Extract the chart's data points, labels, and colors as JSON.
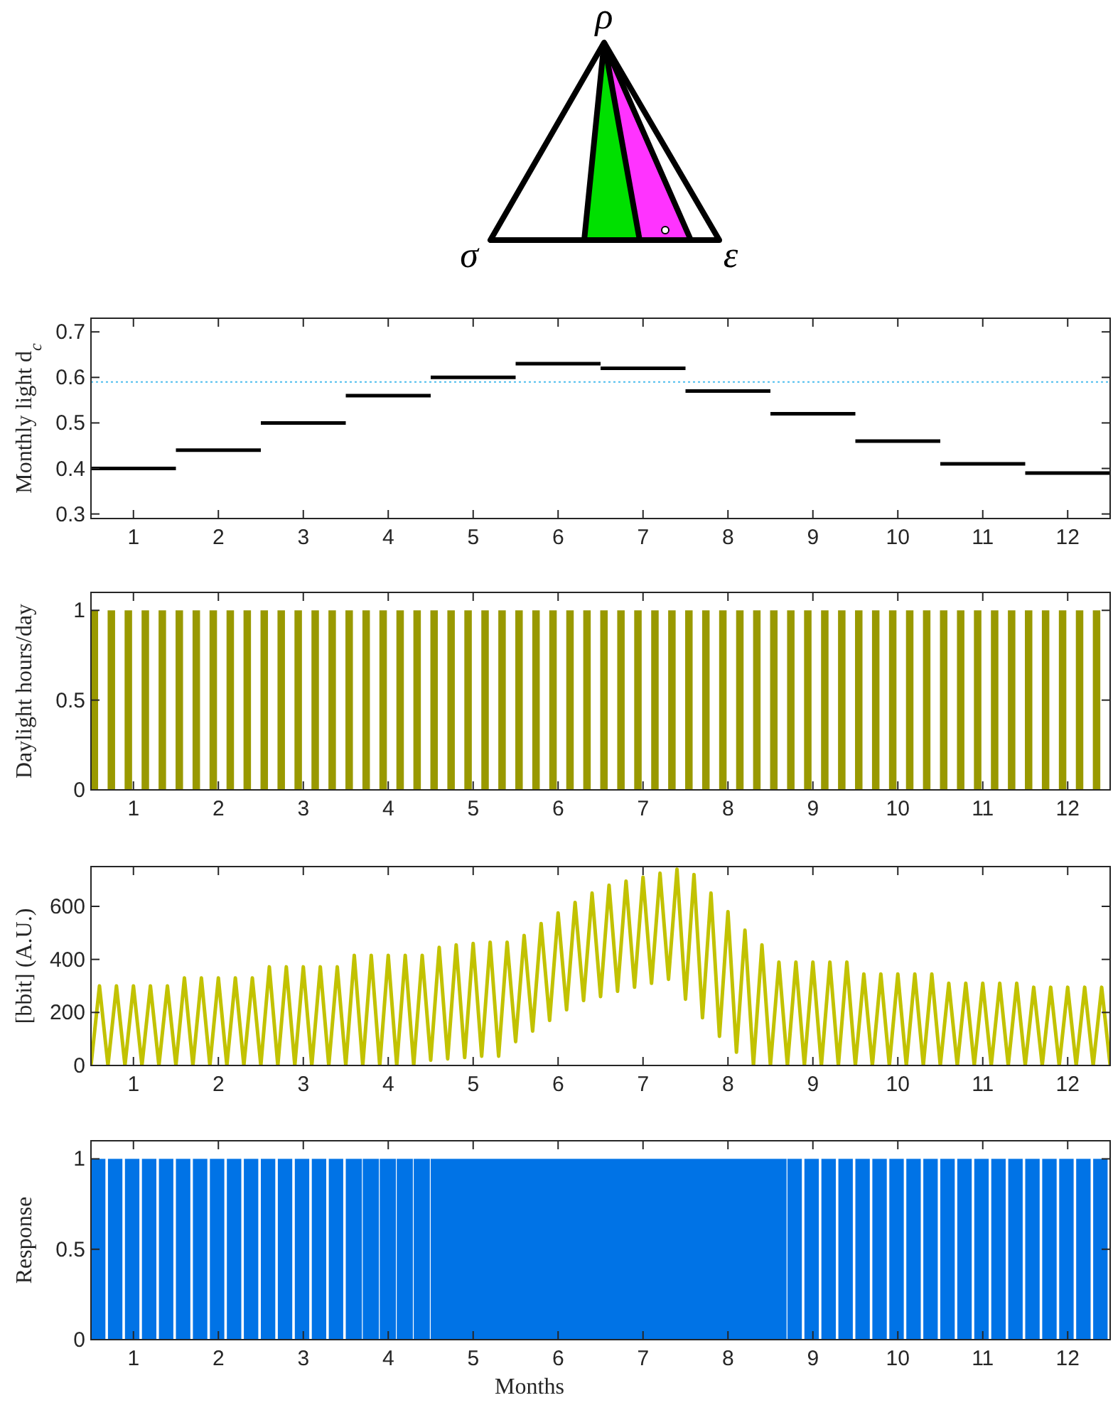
{
  "chart_data": [
    {
      "type": "other",
      "annotations": [
        "ρ",
        "σ",
        "ε"
      ]
    },
    {
      "type": "line",
      "ylabel": "Monthly light d$_{c}$",
      "series": [
        {
          "x": [
            0.5,
            1.5
          ],
          "values": [
            0.4,
            0.4
          ],
          "color": "#000000"
        },
        {
          "x": [
            1.5,
            2.5
          ],
          "values": [
            0.44,
            0.44
          ],
          "color": "#000000"
        },
        {
          "x": [
            2.5,
            3.5
          ],
          "values": [
            0.5,
            0.5
          ],
          "color": "#000000"
        },
        {
          "x": [
            3.5,
            4.5
          ],
          "values": [
            0.56,
            0.56
          ],
          "color": "#000000"
        },
        {
          "x": [
            4.5,
            5.5
          ],
          "values": [
            0.6,
            0.6
          ],
          "color": "#000000"
        },
        {
          "x": [
            5.5,
            6.5
          ],
          "values": [
            0.63,
            0.63
          ],
          "color": "#000000"
        },
        {
          "x": [
            6.5,
            7.5
          ],
          "values": [
            0.62,
            0.62
          ],
          "color": "#000000"
        },
        {
          "x": [
            7.5,
            8.5
          ],
          "values": [
            0.57,
            0.57
          ],
          "color": "#000000"
        },
        {
          "x": [
            8.5,
            9.5
          ],
          "values": [
            0.52,
            0.52
          ],
          "color": "#000000"
        },
        {
          "x": [
            9.5,
            10.5
          ],
          "values": [
            0.46,
            0.46
          ],
          "color": "#000000"
        },
        {
          "x": [
            10.5,
            11.5
          ],
          "values": [
            0.41,
            0.41
          ],
          "color": "#000000"
        },
        {
          "x": [
            11.5,
            12.5
          ],
          "values": [
            0.39,
            0.39
          ],
          "color": "#000000"
        }
      ],
      "xlim": [
        0.5,
        12.5
      ],
      "xticks": [
        1,
        2,
        3,
        4,
        5,
        6,
        7,
        8,
        9,
        10,
        11,
        12
      ],
      "ylim": [
        0.29,
        0.73
      ],
      "yticks": [
        0.3,
        0.4,
        0.5,
        0.6,
        0.7
      ],
      "ref_lines": [
        {
          "axis": "y",
          "value": 0.59,
          "color": "#4dbeee",
          "line_style": "dotted"
        }
      ],
      "grid": false
    },
    {
      "type": "bar",
      "ylabel": "Daylight hours/day",
      "x": [
        0.54,
        0.74,
        0.94,
        1.14,
        1.34,
        1.54,
        1.74,
        1.94,
        2.14,
        2.34,
        2.54,
        2.74,
        2.94,
        3.14,
        3.34,
        3.54,
        3.74,
        3.94,
        4.14,
        4.34,
        4.54,
        4.74,
        4.94,
        5.14,
        5.34,
        5.54,
        5.74,
        5.94,
        6.14,
        6.34,
        6.54,
        6.74,
        6.94,
        7.14,
        7.34,
        7.54,
        7.74,
        7.94,
        8.14,
        8.34,
        8.54,
        8.74,
        8.94,
        9.14,
        9.34,
        9.54,
        9.74,
        9.94,
        10.14,
        10.34,
        10.54,
        10.74,
        10.94,
        11.14,
        11.34,
        11.54,
        11.74,
        11.94,
        12.14,
        12.34
      ],
      "values": [
        1,
        1,
        1,
        1,
        1,
        1,
        1,
        1,
        1,
        1,
        1,
        1,
        1,
        1,
        1,
        1,
        1,
        1,
        1,
        1,
        1,
        1,
        1,
        1,
        1,
        1,
        1,
        1,
        1,
        1,
        1,
        1,
        1,
        1,
        1,
        1,
        1,
        1,
        1,
        1,
        1,
        1,
        1,
        1,
        1,
        1,
        1,
        1,
        1,
        1,
        1,
        1,
        1,
        1,
        1,
        1,
        1,
        1,
        1,
        1
      ],
      "color": "#999900",
      "xlim": [
        0.5,
        12.5
      ],
      "xticks": [
        1,
        2,
        3,
        4,
        5,
        6,
        7,
        8,
        9,
        10,
        11,
        12
      ],
      "ylim": [
        0,
        1.1
      ],
      "yticks": [
        0,
        0.5,
        1
      ],
      "grid": false
    },
    {
      "type": "line",
      "ylabel": "[bbit] (A.U.)",
      "x": [
        0.5,
        0.6,
        0.7,
        0.8,
        0.9,
        1.0,
        1.1,
        1.2,
        1.3,
        1.4,
        1.5,
        1.6,
        1.7,
        1.8,
        1.9,
        2.0,
        2.1,
        2.2,
        2.3,
        2.4,
        2.5,
        2.6,
        2.7,
        2.8,
        2.9,
        3.0,
        3.1,
        3.2,
        3.3,
        3.4,
        3.5,
        3.6,
        3.7,
        3.8,
        3.9,
        4.0,
        4.1,
        4.2,
        4.3,
        4.4,
        4.5,
        4.6,
        4.7,
        4.8,
        4.9,
        5.0,
        5.1,
        5.2,
        5.3,
        5.4,
        5.5,
        5.6,
        5.7,
        5.8,
        5.9,
        6.0,
        6.1,
        6.2,
        6.3,
        6.4,
        6.5,
        6.6,
        6.7,
        6.8,
        6.9,
        7.0,
        7.1,
        7.2,
        7.3,
        7.4,
        7.5,
        7.6,
        7.7,
        7.8,
        7.9,
        8.0,
        8.1,
        8.2,
        8.3,
        8.4,
        8.5,
        8.6,
        8.7,
        8.8,
        8.9,
        9.0,
        9.1,
        9.2,
        9.3,
        9.4,
        9.5,
        9.6,
        9.7,
        9.8,
        9.9,
        10.0,
        10.1,
        10.2,
        10.3,
        10.4,
        10.5,
        10.6,
        10.7,
        10.8,
        10.9,
        11.0,
        11.1,
        11.2,
        11.3,
        11.4,
        11.5,
        11.6,
        11.7,
        11.8,
        11.9,
        12.0,
        12.1,
        12.2,
        12.3,
        12.4,
        12.5
      ],
      "values": [
        0,
        300,
        0,
        300,
        0,
        300,
        0,
        300,
        0,
        300,
        0,
        330,
        0,
        330,
        0,
        330,
        0,
        330,
        0,
        330,
        0,
        372,
        0,
        372,
        0,
        372,
        0,
        372,
        0,
        372,
        0,
        415,
        0,
        415,
        0,
        415,
        0,
        415,
        0,
        415,
        20,
        445,
        25,
        455,
        30,
        460,
        35,
        465,
        35,
        465,
        90,
        490,
        130,
        535,
        170,
        575,
        210,
        615,
        245,
        650,
        260,
        680,
        280,
        695,
        295,
        710,
        310,
        725,
        325,
        740,
        250,
        720,
        180,
        650,
        110,
        580,
        50,
        510,
        0,
        455,
        0,
        390,
        0,
        390,
        0,
        390,
        0,
        390,
        0,
        390,
        0,
        345,
        0,
        345,
        0,
        345,
        0,
        345,
        0,
        345,
        0,
        310,
        0,
        310,
        0,
        310,
        0,
        310,
        0,
        310,
        0,
        295,
        0,
        295,
        0,
        295,
        0,
        295,
        0,
        295,
        0
      ],
      "color": "#c2c200",
      "xlim": [
        0.5,
        12.5
      ],
      "xticks": [
        1,
        2,
        3,
        4,
        5,
        6,
        7,
        8,
        9,
        10,
        11,
        12
      ],
      "ylim": [
        0,
        750
      ],
      "yticks": [
        0,
        200,
        400,
        600
      ],
      "grid": false
    },
    {
      "type": "histogram",
      "ylabel": "Response",
      "xlabel": "Months",
      "bins": [
        0.5,
        0.67,
        0.7,
        0.87,
        0.9,
        1.07,
        1.1,
        1.27,
        1.3,
        1.47,
        1.5,
        1.67,
        1.7,
        1.87,
        1.9,
        2.07,
        2.1,
        2.27,
        2.3,
        2.47,
        2.5,
        2.67,
        2.7,
        2.87,
        2.9,
        3.07,
        3.1,
        3.27,
        3.3,
        3.47,
        3.5,
        3.69,
        3.7,
        3.89,
        3.9,
        4.09,
        4.1,
        4.29,
        4.3,
        4.49,
        4.5,
        8.69,
        8.7,
        8.87,
        8.9,
        9.07,
        9.1,
        9.27,
        9.3,
        9.47,
        9.5,
        9.67,
        9.7,
        9.87,
        9.9,
        10.07,
        10.1,
        10.27,
        10.3,
        10.47,
        10.5,
        10.67,
        10.7,
        10.87,
        10.9,
        11.07,
        11.1,
        11.27,
        11.3,
        11.47,
        11.5,
        11.67,
        11.7,
        11.87,
        11.9,
        12.07,
        12.1,
        12.27,
        12.3,
        12.47
      ],
      "values": [
        1,
        0,
        1,
        0,
        1,
        0,
        1,
        0,
        1,
        0,
        1,
        0,
        1,
        0,
        1,
        0,
        1,
        0,
        1,
        0,
        1,
        0,
        1,
        0,
        1,
        0,
        1,
        0,
        1,
        0,
        1,
        0,
        1,
        0,
        1,
        0,
        1,
        0,
        1,
        0,
        1,
        0,
        1,
        0,
        1,
        0,
        1,
        0,
        1,
        0,
        1,
        0,
        1,
        0,
        1,
        0,
        1,
        0,
        1,
        0,
        1,
        0,
        1,
        0,
        1,
        0,
        1,
        0,
        1,
        0,
        1,
        0,
        1,
        0,
        1,
        0,
        1,
        0,
        1
      ],
      "color": "#0073e6",
      "xlim": [
        0.5,
        12.5
      ],
      "xticks": [
        1,
        2,
        3,
        4,
        5,
        6,
        7,
        8,
        9,
        10,
        11,
        12
      ],
      "ylim": [
        0,
        1.1
      ],
      "yticks": [
        0,
        0.5,
        1
      ],
      "grid": false
    }
  ]
}
